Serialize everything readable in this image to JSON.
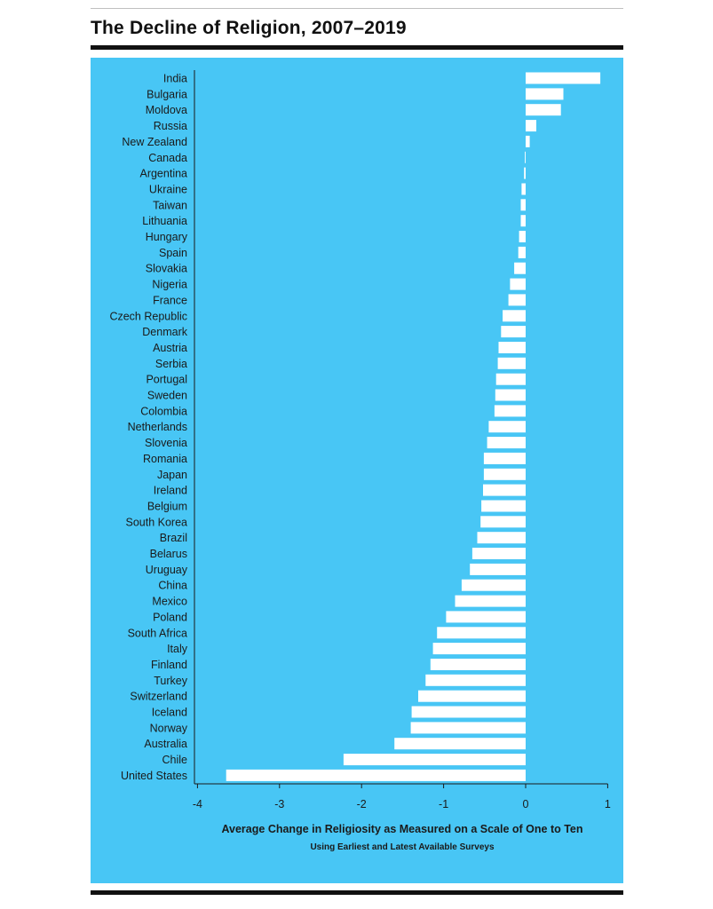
{
  "title": "The Decline of Religion, 2007–2019",
  "colors": {
    "panel": "#48c6f5",
    "bar": "#ffffff",
    "axis": "#1a1a1a",
    "rule": "#111111"
  },
  "chart_data": {
    "type": "bar",
    "orientation": "horizontal",
    "title": "The Decline of Religion, 2007–2019",
    "xlabel": "Average Change in Religiosity as Measured on a Scale of One to Ten",
    "subtitle": "Using Earliest and Latest Available Surveys",
    "ylabel": "",
    "xlim": [
      -4,
      1
    ],
    "xticks": [
      -4,
      -3,
      -2,
      -1,
      0,
      1
    ],
    "grid": false,
    "categories": [
      "India",
      "Bulgaria",
      "Moldova",
      "Russia",
      "New Zealand",
      "Canada",
      "Argentina",
      "Ukraine",
      "Taiwan",
      "Lithuania",
      "Hungary",
      "Spain",
      "Slovakia",
      "Nigeria",
      "France",
      "Czech Republic",
      "Denmark",
      "Austria",
      "Serbia",
      "Portugal",
      "Sweden",
      "Colombia",
      "Netherlands",
      "Slovenia",
      "Romania",
      "Japan",
      "Ireland",
      "Belgium",
      "South Korea",
      "Brazil",
      "Belarus",
      "Uruguay",
      "China",
      "Mexico",
      "Poland",
      "South Africa",
      "Italy",
      "Finland",
      "Turkey",
      "Switzerland",
      "Iceland",
      "Norway",
      "Australia",
      "Chile",
      "United States"
    ],
    "values": [
      0.91,
      0.46,
      0.43,
      0.13,
      0.05,
      -0.01,
      -0.02,
      -0.05,
      -0.06,
      -0.06,
      -0.08,
      -0.09,
      -0.14,
      -0.19,
      -0.21,
      -0.28,
      -0.3,
      -0.33,
      -0.34,
      -0.36,
      -0.37,
      -0.38,
      -0.45,
      -0.47,
      -0.51,
      -0.51,
      -0.52,
      -0.54,
      -0.55,
      -0.59,
      -0.65,
      -0.68,
      -0.78,
      -0.86,
      -0.97,
      -1.08,
      -1.13,
      -1.16,
      -1.22,
      -1.31,
      -1.39,
      -1.4,
      -1.6,
      -2.22,
      -3.65
    ]
  }
}
